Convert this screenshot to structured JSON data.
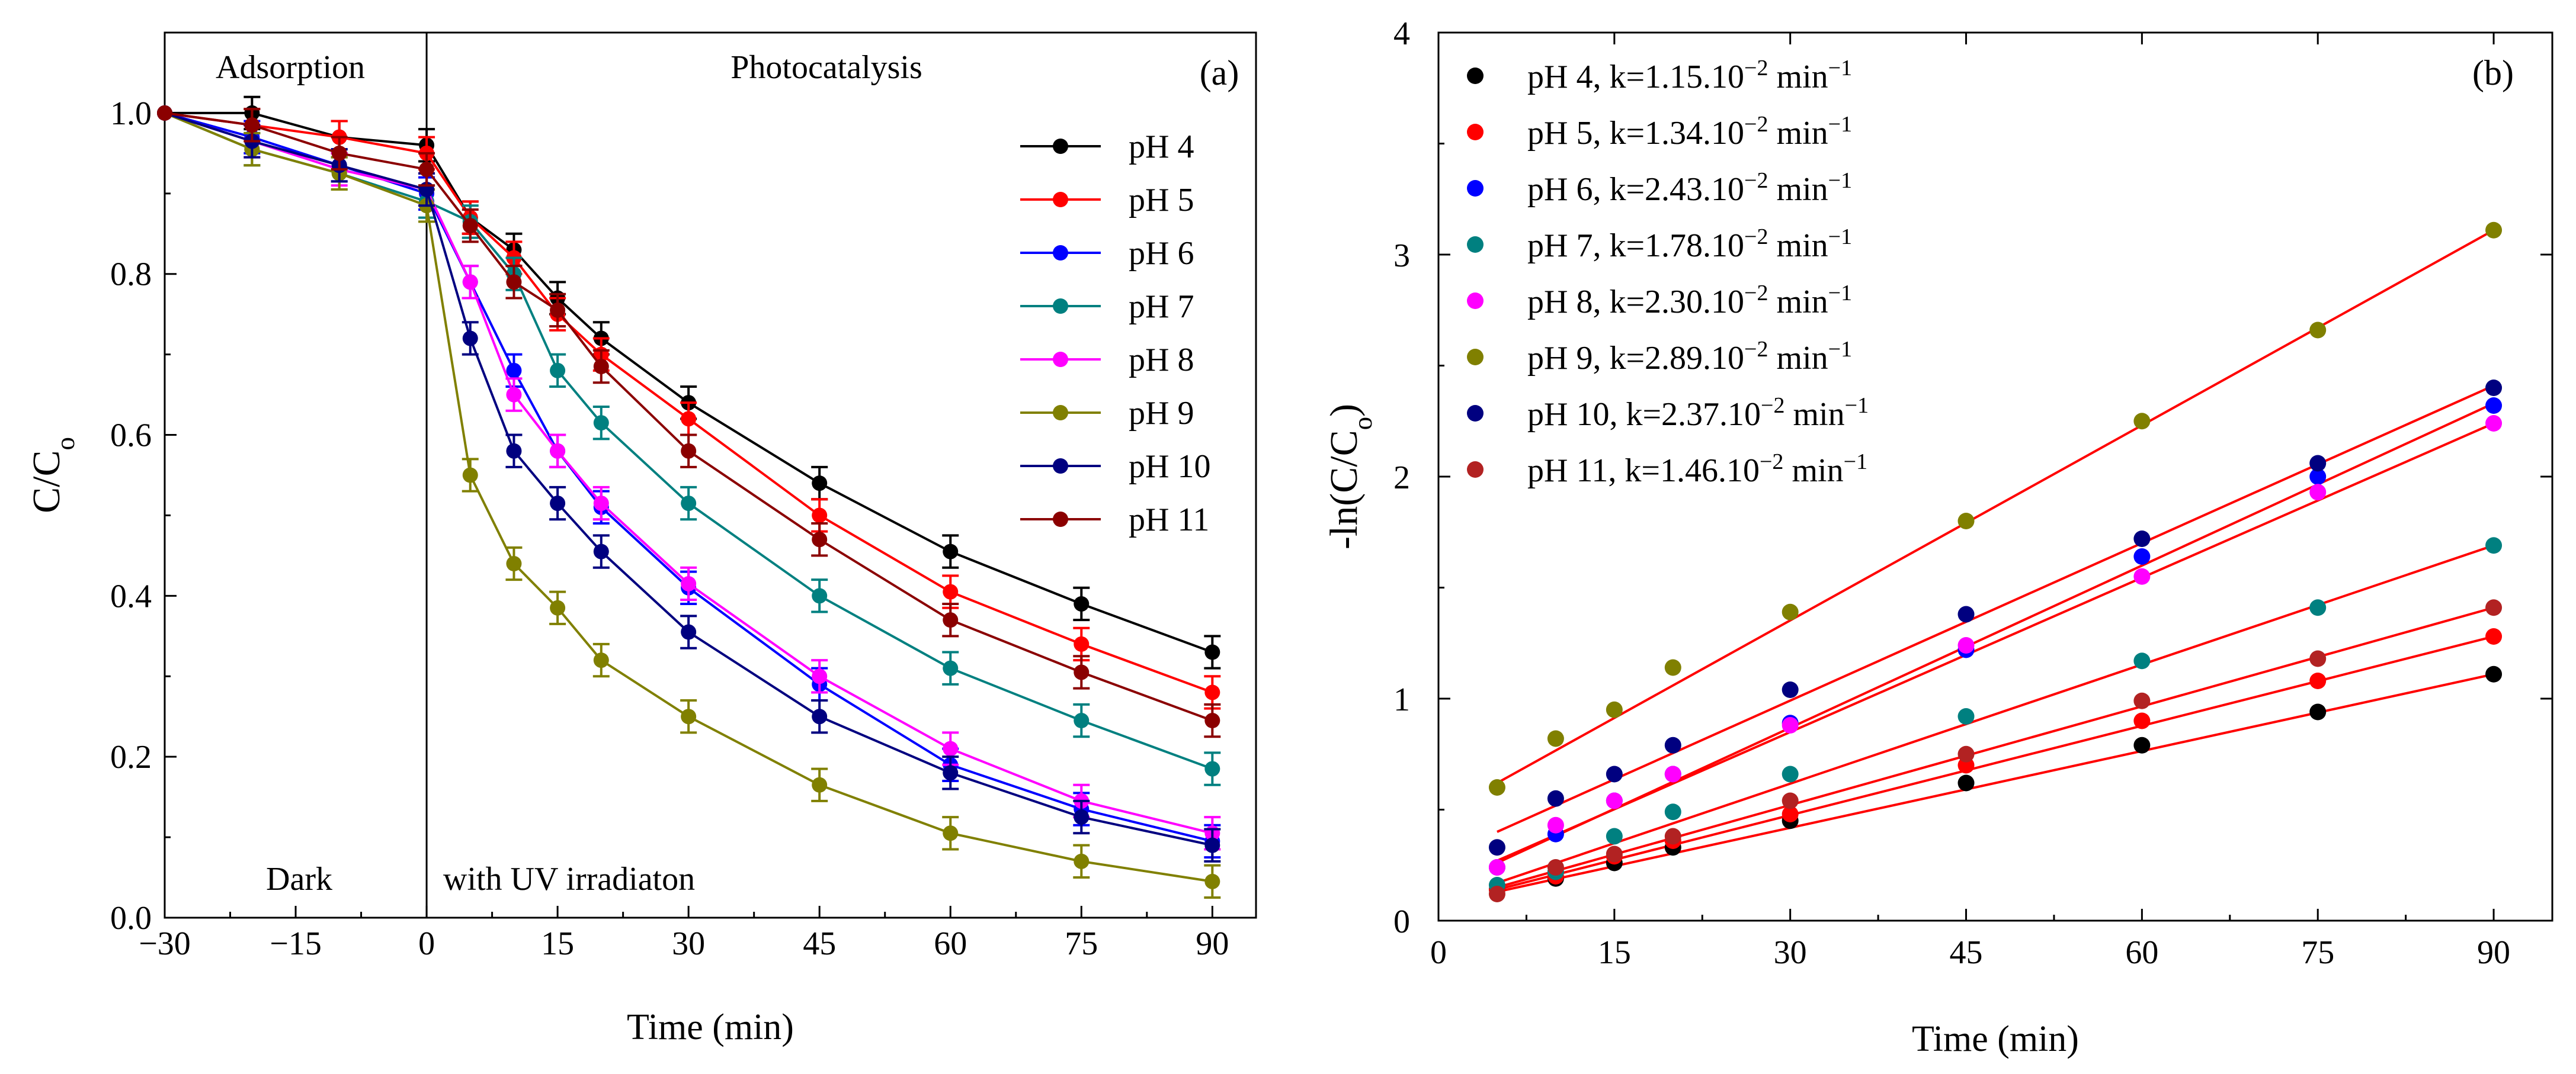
{
  "chart_data": [
    {
      "panel": "(a)",
      "type": "line",
      "xlabel": "Time (min)",
      "ylabel": "C/C",
      "ylabel_sub": "o",
      "xlim": [
        -30,
        95
      ],
      "ylim": [
        0,
        1.1
      ],
      "xticks": [
        -30,
        -15,
        0,
        15,
        30,
        45,
        60,
        75,
        90
      ],
      "xtick_labels": [
        "−30",
        "−15",
        "0",
        "15",
        "30",
        "45",
        "60",
        "75",
        "90"
      ],
      "yticks": [
        0.0,
        0.2,
        0.4,
        0.6,
        0.8,
        1.0
      ],
      "ytick_labels": [
        "0.0",
        "0.2",
        "0.4",
        "0.6",
        "0.8",
        "1.0"
      ],
      "annotations": {
        "adsorption": "Adsorption",
        "photocatalysis": "Photocatalysis",
        "dark": "Dark",
        "uv": "with UV irradiaton",
        "panel": "(a)"
      },
      "divider_x": 0,
      "x": [
        -30,
        -20,
        -10,
        0,
        5,
        10,
        15,
        20,
        30,
        45,
        60,
        75,
        90
      ],
      "series": [
        {
          "name": "pH  4",
          "color": "#000000",
          "values": [
            1.0,
            1.0,
            0.97,
            0.96,
            0.87,
            0.83,
            0.77,
            0.72,
            0.64,
            0.54,
            0.455,
            0.39,
            0.33
          ],
          "error": 0.02
        },
        {
          "name": "pH  5",
          "color": "#ff0000",
          "values": [
            1.0,
            0.985,
            0.97,
            0.95,
            0.87,
            0.82,
            0.75,
            0.7,
            0.62,
            0.5,
            0.405,
            0.34,
            0.28
          ],
          "error": 0.02
        },
        {
          "name": "pH  6",
          "color": "#0000ff",
          "values": [
            1.0,
            0.97,
            0.935,
            0.9,
            0.79,
            0.68,
            0.58,
            0.51,
            0.41,
            0.29,
            0.19,
            0.135,
            0.095
          ],
          "error": 0.02
        },
        {
          "name": "pH  7",
          "color": "#008080",
          "values": [
            1.0,
            0.955,
            0.925,
            0.89,
            0.865,
            0.8,
            0.68,
            0.615,
            0.515,
            0.4,
            0.31,
            0.245,
            0.185
          ],
          "error": 0.02
        },
        {
          "name": "pH  8",
          "color": "#ff00ff",
          "values": [
            1.0,
            0.965,
            0.93,
            0.905,
            0.79,
            0.65,
            0.58,
            0.515,
            0.415,
            0.3,
            0.21,
            0.145,
            0.105
          ],
          "error": 0.02
        },
        {
          "name": "pH  9",
          "color": "#808000",
          "values": [
            1.0,
            0.955,
            0.925,
            0.885,
            0.55,
            0.44,
            0.385,
            0.32,
            0.25,
            0.165,
            0.105,
            0.07,
            0.045
          ],
          "error": 0.02
        },
        {
          "name": "pH 10",
          "color": "#000080",
          "values": [
            1.0,
            0.965,
            0.935,
            0.905,
            0.72,
            0.58,
            0.515,
            0.455,
            0.355,
            0.25,
            0.18,
            0.125,
            0.09
          ],
          "error": 0.02
        },
        {
          "name": "pH 11",
          "color": "#8b0000",
          "values": [
            1.0,
            0.985,
            0.95,
            0.93,
            0.86,
            0.79,
            0.755,
            0.685,
            0.58,
            0.47,
            0.37,
            0.305,
            0.245
          ],
          "error": 0.02
        }
      ]
    },
    {
      "panel": "(b)",
      "type": "scatter",
      "xlabel": "Time (min)",
      "ylabel": "-ln(C/C",
      "ylabel_sub": "o",
      "ylabel_end": ")",
      "xlim": [
        0,
        95
      ],
      "ylim": [
        0,
        4
      ],
      "xticks": [
        0,
        15,
        30,
        45,
        60,
        75,
        90
      ],
      "xtick_labels": [
        "0",
        "15",
        "30",
        "45",
        "60",
        "75",
        "90"
      ],
      "yticks": [
        0,
        1,
        2,
        3,
        4
      ],
      "ytick_labels": [
        "0",
        "1",
        "2",
        "3",
        "4"
      ],
      "annotations": {
        "panel": "(b)"
      },
      "fit_color": "#ff0000",
      "x": [
        5,
        10,
        15,
        20,
        30,
        45,
        60,
        75,
        90
      ],
      "series": [
        {
          "name": "pH  4, k=1.15.10",
          "k_exp": "−2",
          "unit": " min",
          "unit_exp": "−1",
          "color": "#000000",
          "values": [
            0.14,
            0.19,
            0.26,
            0.33,
            0.45,
            0.62,
            0.79,
            0.94,
            1.11
          ],
          "fit": [
            0.13,
            1.11
          ]
        },
        {
          "name": "pH  5, k=1.34.10",
          "k_exp": "−2",
          "unit": " min",
          "unit_exp": "−1",
          "color": "#ff0000",
          "values": [
            0.14,
            0.2,
            0.29,
            0.36,
            0.48,
            0.7,
            0.9,
            1.08,
            1.28
          ],
          "fit": [
            0.14,
            1.28
          ]
        },
        {
          "name": "pH  6, k=2.43.10",
          "k_exp": "−2",
          "unit": " min",
          "unit_exp": "−1",
          "color": "#0000ff",
          "values": [
            0.24,
            0.39,
            0.54,
            0.66,
            0.89,
            1.22,
            1.64,
            2.0,
            2.32
          ],
          "fit": [
            0.26,
            2.33
          ]
        },
        {
          "name": "pH  7, k=1.78.10",
          "k_exp": "−2",
          "unit": " min",
          "unit_exp": "−1",
          "color": "#008080",
          "values": [
            0.16,
            0.22,
            0.38,
            0.49,
            0.66,
            0.92,
            1.17,
            1.41,
            1.69
          ],
          "fit": [
            0.17,
            1.69
          ]
        },
        {
          "name": "pH  8, k=2.30.10",
          "k_exp": "−2",
          "unit": " min",
          "unit_exp": "−1",
          "color": "#ff00ff",
          "values": [
            0.24,
            0.43,
            0.54,
            0.66,
            0.88,
            1.24,
            1.55,
            1.93,
            2.24
          ],
          "fit": [
            0.27,
            2.24
          ]
        },
        {
          "name": "pH  9, k=2.89.10",
          "k_exp": "−2",
          "unit": " min",
          "unit_exp": "−1",
          "color": "#808000",
          "values": [
            0.6,
            0.82,
            0.95,
            1.14,
            1.39,
            1.8,
            2.25,
            2.66,
            3.11
          ],
          "fit": [
            0.62,
            3.11
          ]
        },
        {
          "name": "pH 10, k=2.37.10",
          "k_exp": "−2",
          "unit": " min",
          "unit_exp": "−1",
          "color": "#000080",
          "values": [
            0.33,
            0.55,
            0.66,
            0.79,
            1.04,
            1.38,
            1.72,
            2.06,
            2.4
          ],
          "fit": [
            0.4,
            2.41
          ]
        },
        {
          "name": "pH 11, k=1.46.10",
          "k_exp": "−2",
          "unit": " min",
          "unit_exp": "−1",
          "color": "#b22222",
          "values": [
            0.12,
            0.24,
            0.3,
            0.38,
            0.54,
            0.75,
            0.99,
            1.18,
            1.41
          ],
          "fit": [
            0.15,
            1.41
          ]
        }
      ]
    }
  ]
}
